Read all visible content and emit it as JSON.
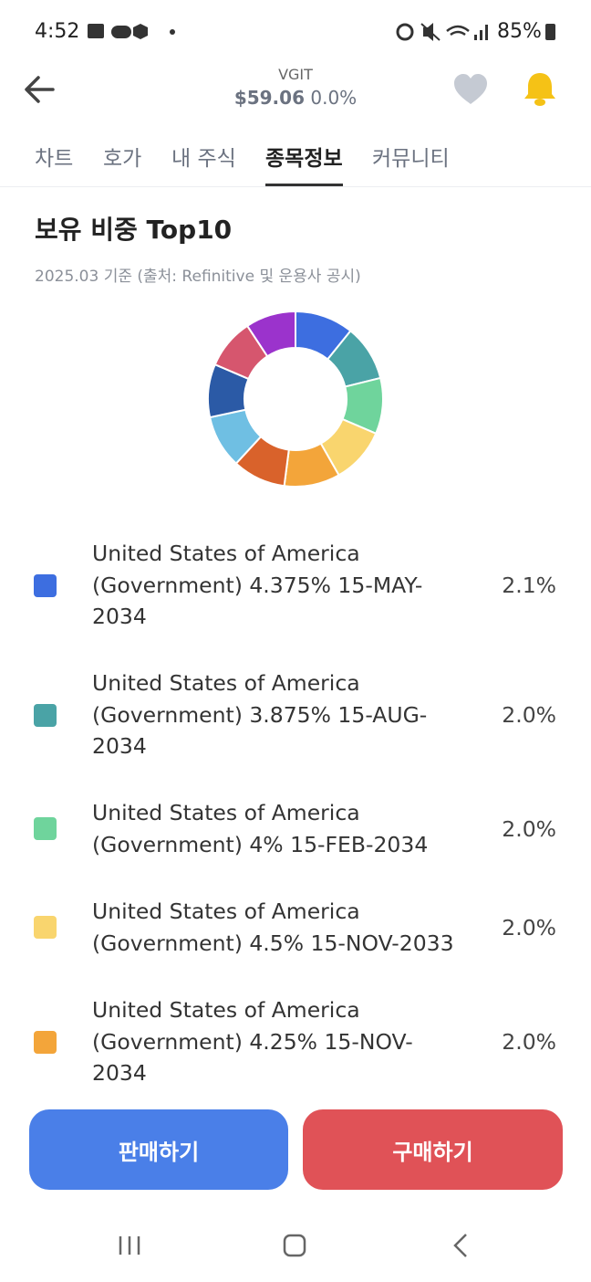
{
  "status": {
    "time": "4:52",
    "battery": "85%"
  },
  "header": {
    "ticker": "VGIT",
    "price": "$59.06",
    "change": "0.0%"
  },
  "tabs": [
    "차트",
    "호가",
    "내 주식",
    "종목정보",
    "커뮤니티"
  ],
  "active_tab": 3,
  "chart_data": {
    "type": "pie",
    "donut": true,
    "title": "보유 비중 Top10",
    "subtitle": "2025.03 기준 (출처: Refinitive 및 운용사 공시)",
    "categories": [
      "United States of America (Government) 4.375% 15-MAY-2034",
      "United States of America (Government) 3.875% 15-AUG-2034",
      "United States of America (Government) 4% 15-FEB-2034",
      "United States of America (Government) 4.5% 15-NOV-2033",
      "United States of America (Government) 4.25% 15-NOV-2034",
      null,
      null,
      null,
      null,
      null
    ],
    "values": [
      2.1,
      2.0,
      2.0,
      2.0,
      2.0,
      1.9,
      1.9,
      1.9,
      1.8,
      1.8
    ],
    "value_labels": [
      "2.1%",
      "2.0%",
      "2.0%",
      "2.0%",
      "2.0%",
      null,
      null,
      null,
      null,
      null
    ],
    "colors": [
      "#3d6ee0",
      "#4aa3a6",
      "#6fd49c",
      "#f9d56e",
      "#f3a53a",
      "#d9622b",
      "#6fbfe3",
      "#2b5aa6",
      "#d6566e",
      "#9b33cc"
    ]
  },
  "buttons": {
    "sell": "판매하기",
    "buy": "구매하기"
  }
}
